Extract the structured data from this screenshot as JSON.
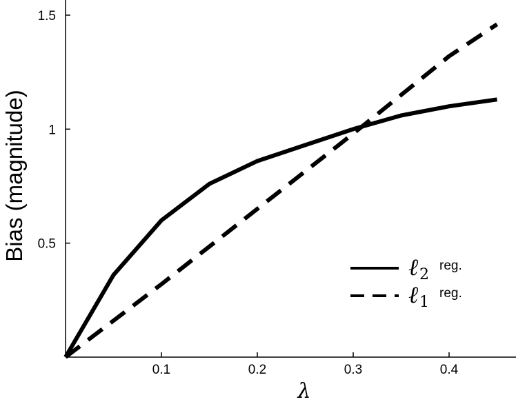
{
  "chart_data": {
    "type": "line",
    "title": "",
    "xlabel": "λ",
    "ylabel": "Bias (magnitude)",
    "xlim": [
      0,
      0.47
    ],
    "ylim": [
      0,
      1.5
    ],
    "x_ticks": [
      0.1,
      0.2,
      0.3,
      0.4
    ],
    "x_tick_labels": [
      "0.1",
      "0.2",
      "0.3",
      "0.4"
    ],
    "y_ticks": [
      0.5,
      1,
      1.5
    ],
    "y_tick_labels": [
      "0.5",
      "1",
      "1.5"
    ],
    "grid": false,
    "legend_position": "bottom-right",
    "series": [
      {
        "name": "ℓ2 reg.",
        "legend_symbol": "ℓ",
        "legend_subscript": "2",
        "legend_suffix": "reg.",
        "style": "solid",
        "color": "#000000",
        "x": [
          0,
          0.05,
          0.1,
          0.15,
          0.2,
          0.25,
          0.3,
          0.35,
          0.4,
          0.45
        ],
        "y": [
          0,
          0.36,
          0.6,
          0.76,
          0.86,
          0.93,
          1.0,
          1.06,
          1.1,
          1.13
        ]
      },
      {
        "name": "ℓ1 reg.",
        "legend_symbol": "ℓ",
        "legend_subscript": "1",
        "legend_suffix": "reg.",
        "style": "dashed",
        "color": "#000000",
        "x": [
          0,
          0.1,
          0.2,
          0.3,
          0.4,
          0.45
        ],
        "y": [
          0,
          0.32,
          0.65,
          0.98,
          1.32,
          1.46
        ]
      }
    ]
  }
}
